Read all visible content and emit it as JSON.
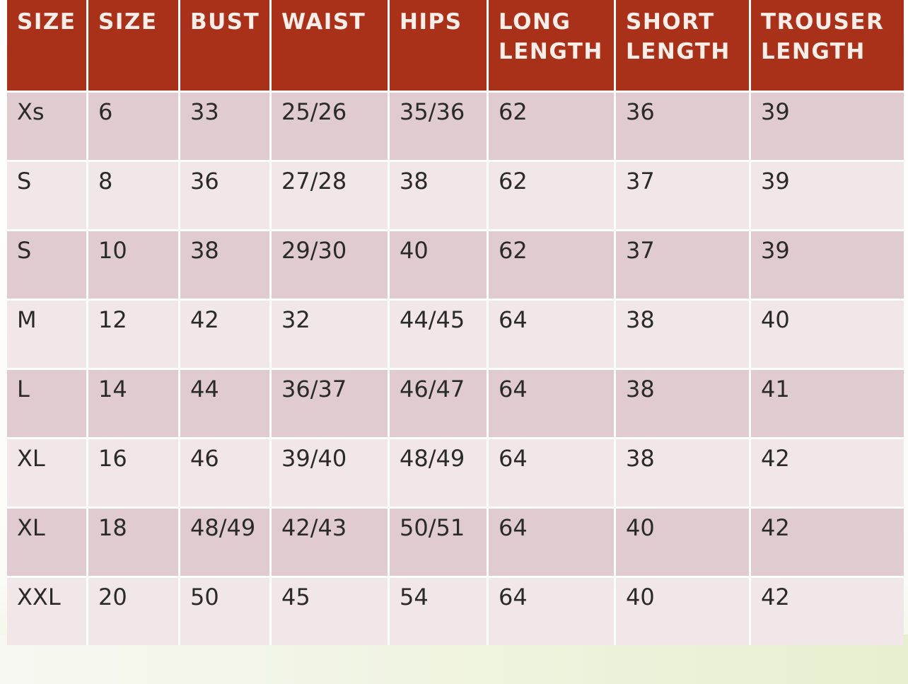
{
  "table": {
    "headers": [
      "SIZE",
      "SIZE",
      "BUST",
      "WAIST",
      "HIPS",
      "LONG\nLENGTH",
      "SHORT\nLENGTH",
      "TROUSER\nLENGTH"
    ],
    "rows": [
      [
        "Xs",
        "6",
        "33",
        "25/26",
        "35/36",
        "62",
        "36",
        "39"
      ],
      [
        "S",
        "8",
        "36",
        "27/28",
        "38",
        "62",
        "37",
        "39"
      ],
      [
        "S",
        "10",
        "38",
        "29/30",
        "40",
        "62",
        "37",
        "39"
      ],
      [
        "M",
        "12",
        "42",
        "32",
        "44/45",
        "64",
        "38",
        "40"
      ],
      [
        "L",
        "14",
        "44",
        "36/37",
        "46/47",
        "64",
        "38",
        "41"
      ],
      [
        "XL",
        "16",
        "46",
        "39/40",
        "48/49",
        "64",
        "38",
        "42"
      ],
      [
        "XL",
        "18",
        "48/49",
        "42/43",
        "50/51",
        "64",
        "40",
        "42"
      ],
      [
        "XXL",
        "20",
        "50",
        "45",
        "54",
        "64",
        "40",
        "42"
      ]
    ]
  },
  "colors": {
    "header": "#a9311a",
    "row_dark": "#e0ccd0",
    "row_light": "#f1e6e8"
  }
}
